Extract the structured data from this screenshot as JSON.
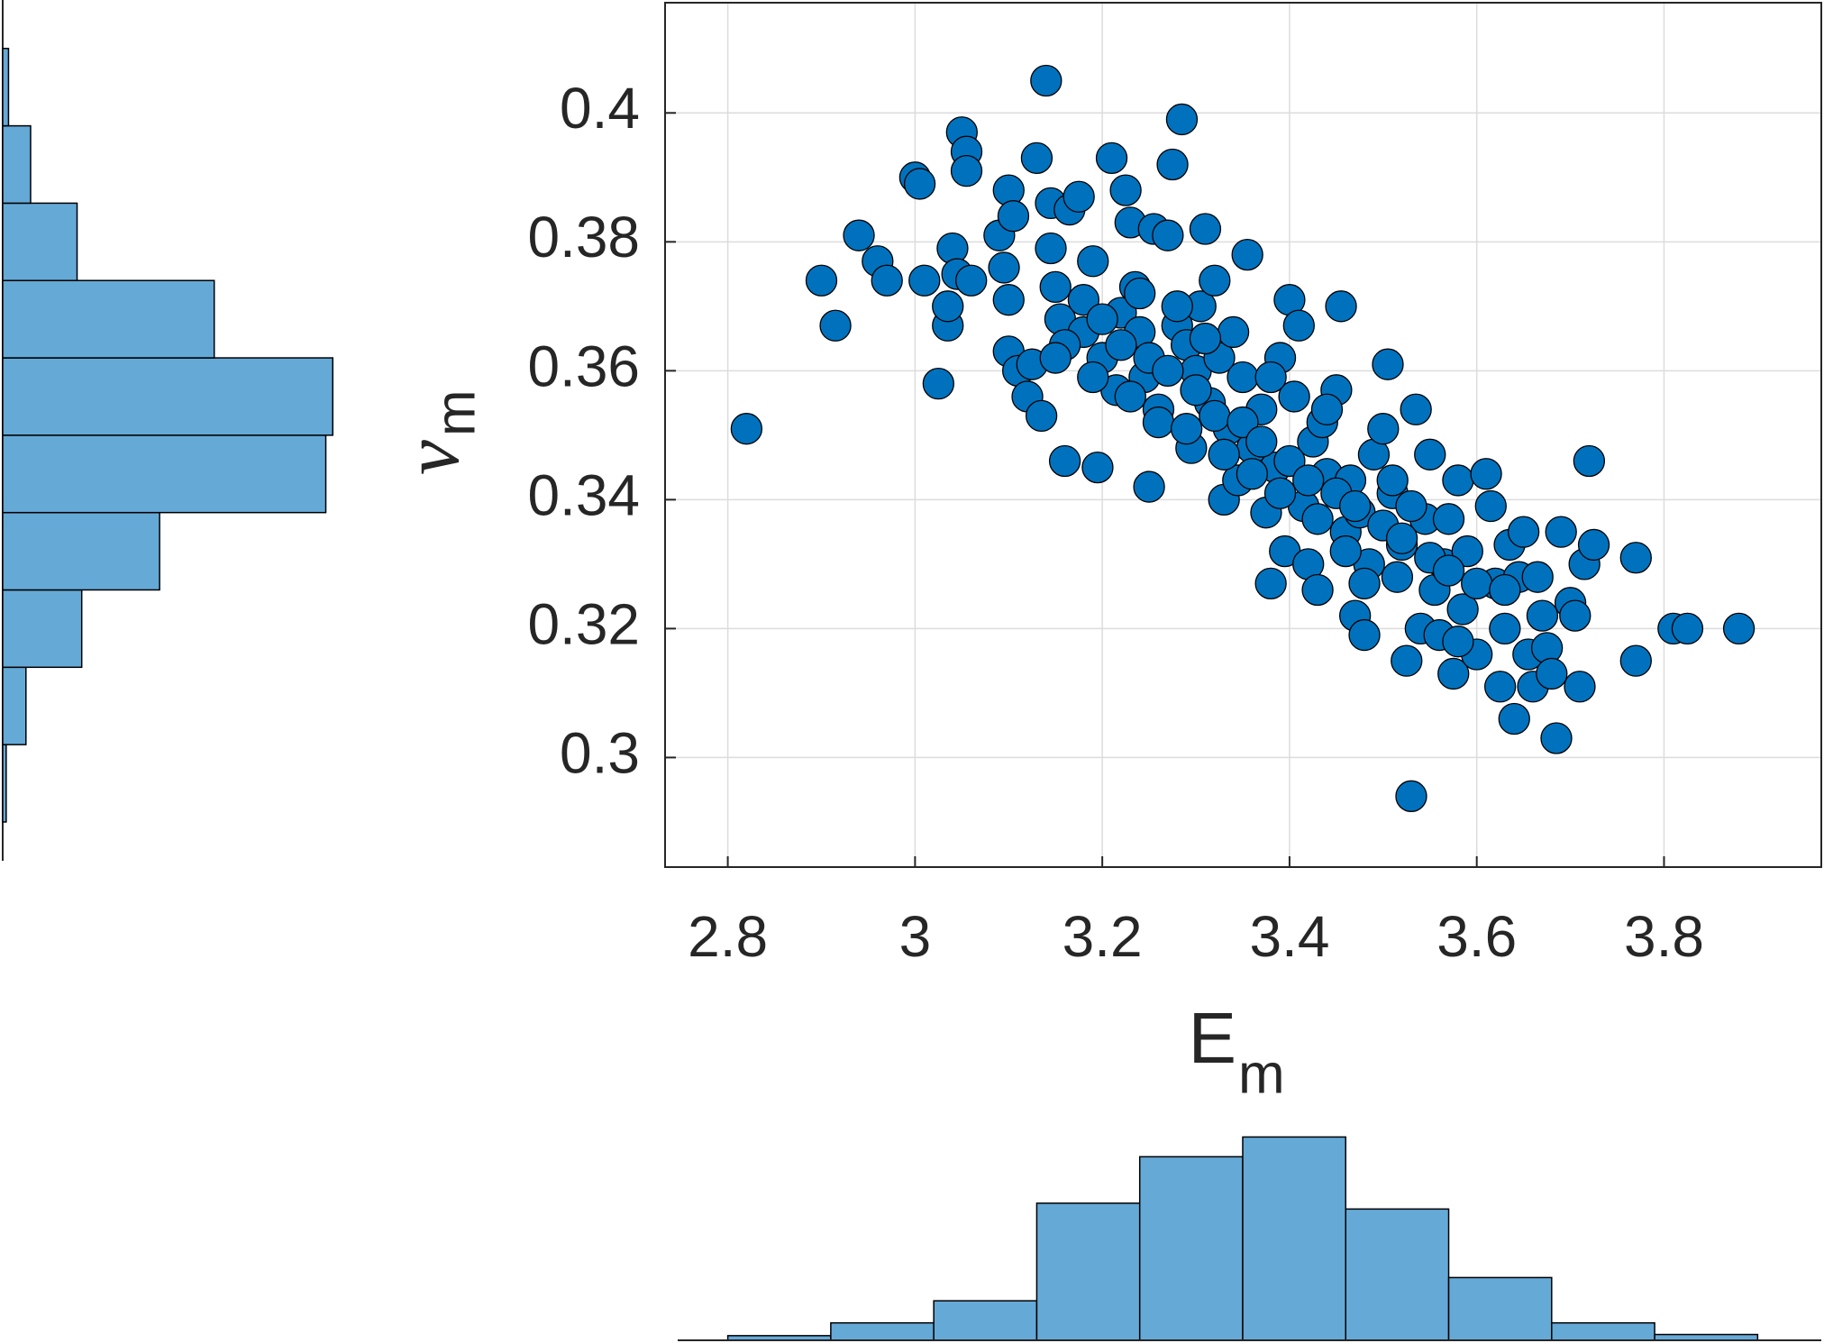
{
  "chart_data": [
    {
      "type": "scatter",
      "xlabel": {
        "main": "E",
        "sub": "m"
      },
      "ylabel": {
        "main": "ν",
        "sub": "m"
      },
      "color": "#0072bd",
      "edgecolor": "#000000",
      "grid": true,
      "xlim": [
        2.733,
        3.968
      ],
      "xticks": [
        2.8,
        3,
        3.2,
        3.4,
        3.6,
        3.8
      ],
      "ylim": [
        0.283,
        0.4171
      ],
      "yticks": [
        0.3,
        0.32,
        0.34,
        0.36,
        0.38,
        0.4
      ],
      "x": [
        2.82,
        2.9,
        2.915,
        2.94,
        2.96,
        2.97,
        3.0,
        3.005,
        3.01,
        3.025,
        3.035,
        3.035,
        3.04,
        3.045,
        3.05,
        3.055,
        3.055,
        3.06,
        3.09,
        3.095,
        3.1,
        3.1,
        3.105,
        3.1,
        3.11,
        3.12,
        3.125,
        3.13,
        3.135,
        3.14,
        3.145,
        3.145,
        3.15,
        3.155,
        3.16,
        3.165,
        3.175,
        3.18,
        3.19,
        3.195,
        3.2,
        3.21,
        3.215,
        3.22,
        3.225,
        3.23,
        3.235,
        3.24,
        3.245,
        3.25,
        3.255,
        3.26,
        3.27,
        3.275,
        3.28,
        3.285,
        3.29,
        3.295,
        3.3,
        3.305,
        3.31,
        3.315,
        3.32,
        3.325,
        3.33,
        3.335,
        3.34,
        3.345,
        3.35,
        3.355,
        3.36,
        3.37,
        3.375,
        3.38,
        3.385,
        3.39,
        3.395,
        3.4,
        3.405,
        3.41,
        3.415,
        3.42,
        3.425,
        3.43,
        3.435,
        3.44,
        3.45,
        3.455,
        3.46,
        3.465,
        3.47,
        3.475,
        3.48,
        3.485,
        3.49,
        3.5,
        3.505,
        3.51,
        3.515,
        3.52,
        3.525,
        3.53,
        3.535,
        3.54,
        3.545,
        3.55,
        3.555,
        3.56,
        3.565,
        3.57,
        3.575,
        3.58,
        3.585,
        3.59,
        3.6,
        3.61,
        3.615,
        3.62,
        3.625,
        3.63,
        3.635,
        3.64,
        3.645,
        3.65,
        3.655,
        3.66,
        3.665,
        3.67,
        3.675,
        3.68,
        3.685,
        3.69,
        3.7,
        3.705,
        3.71,
        3.715,
        3.72,
        3.725,
        3.77,
        3.77,
        3.81,
        3.825,
        3.88,
        3.18,
        3.2,
        3.22,
        3.25,
        3.27,
        3.3,
        3.32,
        3.35,
        3.37,
        3.4,
        3.42,
        3.45,
        3.47,
        3.5,
        3.52,
        3.55,
        3.57,
        3.6,
        3.16,
        3.19,
        3.23,
        3.26,
        3.29,
        3.33,
        3.36,
        3.39,
        3.43,
        3.46,
        3.51,
        3.53,
        3.15,
        3.28,
        3.24,
        3.31,
        3.38,
        3.44,
        3.48,
        3.58,
        3.63
      ],
      "y": [
        0.351,
        0.374,
        0.367,
        0.381,
        0.377,
        0.374,
        0.39,
        0.389,
        0.374,
        0.358,
        0.367,
        0.37,
        0.379,
        0.375,
        0.397,
        0.394,
        0.391,
        0.374,
        0.381,
        0.376,
        0.388,
        0.371,
        0.384,
        0.363,
        0.36,
        0.356,
        0.361,
        0.393,
        0.353,
        0.405,
        0.386,
        0.379,
        0.373,
        0.368,
        0.346,
        0.385,
        0.387,
        0.366,
        0.377,
        0.345,
        0.362,
        0.393,
        0.357,
        0.369,
        0.388,
        0.383,
        0.373,
        0.366,
        0.359,
        0.342,
        0.382,
        0.354,
        0.381,
        0.392,
        0.367,
        0.399,
        0.364,
        0.348,
        0.36,
        0.37,
        0.382,
        0.355,
        0.374,
        0.362,
        0.34,
        0.351,
        0.366,
        0.343,
        0.359,
        0.378,
        0.348,
        0.354,
        0.338,
        0.327,
        0.345,
        0.362,
        0.332,
        0.371,
        0.356,
        0.367,
        0.339,
        0.33,
        0.349,
        0.326,
        0.352,
        0.344,
        0.357,
        0.37,
        0.335,
        0.343,
        0.322,
        0.338,
        0.319,
        0.33,
        0.347,
        0.351,
        0.361,
        0.341,
        0.328,
        0.333,
        0.315,
        0.294,
        0.354,
        0.32,
        0.337,
        0.347,
        0.326,
        0.319,
        0.33,
        0.337,
        0.313,
        0.343,
        0.323,
        0.332,
        0.316,
        0.344,
        0.339,
        0.327,
        0.311,
        0.32,
        0.333,
        0.306,
        0.328,
        0.335,
        0.316,
        0.311,
        0.328,
        0.322,
        0.317,
        0.313,
        0.303,
        0.335,
        0.324,
        0.322,
        0.311,
        0.33,
        0.346,
        0.333,
        0.331,
        0.315,
        0.32,
        0.32,
        0.32,
        0.371,
        0.368,
        0.364,
        0.362,
        0.36,
        0.357,
        0.353,
        0.352,
        0.349,
        0.346,
        0.343,
        0.341,
        0.339,
        0.336,
        0.334,
        0.331,
        0.329,
        0.327,
        0.364,
        0.359,
        0.356,
        0.352,
        0.351,
        0.347,
        0.344,
        0.341,
        0.337,
        0.332,
        0.343,
        0.339,
        0.362,
        0.37,
        0.372,
        0.365,
        0.359,
        0.354,
        0.327,
        0.318,
        0.326
      ]
    },
    {
      "type": "histogram",
      "color": "#65a9d7",
      "edgecolor": "#000000",
      "bins": [
        2.8,
        2.91,
        3.02,
        3.13,
        3.24,
        3.35,
        3.46,
        3.57,
        3.68,
        3.79,
        3.9
      ],
      "values": [
        4,
        15,
        34,
        118,
        158,
        175,
        113,
        54,
        15,
        5
      ],
      "xlim": [
        2.733,
        3.968
      ],
      "ylim": [
        0,
        180
      ]
    },
    {
      "type": "histogram",
      "orientation": "horizontal",
      "color": "#65a9d7",
      "edgecolor": "#000000",
      "bins": [
        0.29,
        0.302,
        0.314,
        0.326,
        0.338,
        0.35,
        0.362,
        0.374,
        0.386,
        0.398,
        0.41
      ],
      "values": [
        3,
        20,
        68,
        135,
        278,
        284,
        182,
        64,
        24,
        5
      ],
      "ylim": [
        0.283,
        0.4171
      ],
      "xlim": [
        0,
        290
      ]
    }
  ]
}
